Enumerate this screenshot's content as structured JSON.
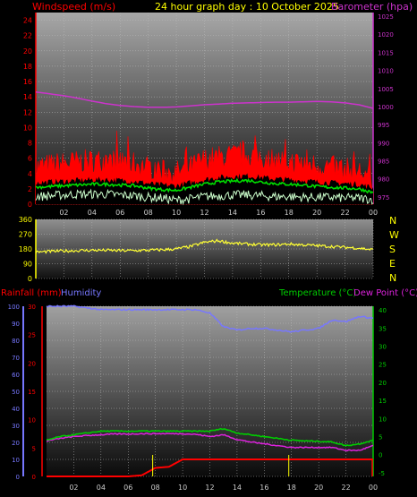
{
  "header": {
    "left_title": "Windspeed (m/s)",
    "center_title": "24 hour graph day : 10 October 2025",
    "right_title": "Barometer (hpa)"
  },
  "colors": {
    "wind": "#ff0000",
    "gust_fill": "#ff0000",
    "barometer": "#cc33cc",
    "wind_avg": "#00dd00",
    "wind_low": "#ccffcc",
    "direction": "#ffff33",
    "humidity": "#7777ff",
    "temperature": "#00cc00",
    "dewpoint": "#dd22dd",
    "rain": "#ff0000",
    "rain_marker": "#ffff00"
  },
  "x_ticks": [
    "02",
    "04",
    "06",
    "08",
    "10",
    "12",
    "14",
    "16",
    "18",
    "20",
    "22",
    "00"
  ],
  "compass": [
    "N",
    "W",
    "S",
    "E",
    "N"
  ],
  "labels_bottom": {
    "rainfall": "Rainfall (mm)",
    "humidity": "Humidity",
    "temperature": "Temperature (°C)",
    "dewpoint": "Dew Point (°C)"
  },
  "chart_data": [
    {
      "type": "line",
      "title": "24 hour graph day : 10 October 2025",
      "ylabel": "Windspeed (m/s)",
      "y2label": "Barometer (hpa)",
      "ylim": [
        0,
        25
      ],
      "y2lim": [
        973,
        1026
      ],
      "y_ticks": [
        0,
        2,
        4,
        6,
        8,
        10,
        12,
        14,
        16,
        18,
        20,
        22,
        24
      ],
      "y2_ticks": [
        975,
        980,
        985,
        990,
        995,
        1000,
        1005,
        1010,
        1015,
        1020,
        1025
      ],
      "x_hours": [
        0,
        1,
        2,
        3,
        4,
        5,
        6,
        7,
        8,
        9,
        10,
        11,
        12,
        13,
        14,
        15,
        16,
        17,
        18,
        19,
        20,
        21,
        22,
        23,
        24
      ],
      "series": [
        {
          "name": "Barometer (hpa)",
          "axis": "y2",
          "values": [
            1004,
            1003.5,
            1003,
            1002.3,
            1001.5,
            1000.8,
            1000.3,
            1000,
            999.8,
            999.8,
            999.9,
            1000.2,
            1000.5,
            1000.7,
            1000.9,
            1001,
            1001.1,
            1001.2,
            1001.2,
            1001.3,
            1001.4,
            1001.3,
            1001,
            1000.5,
            999.5
          ]
        },
        {
          "axis": "y",
          "values": [
            4.5,
            4.8,
            5,
            5.2,
            5.3,
            5.4,
            5.2,
            5,
            4.5,
            4,
            3.8,
            4.5,
            5.5,
            5.8,
            6,
            6.2,
            5.8,
            5.5,
            5.2,
            5,
            4.8,
            4.5,
            4.2,
            4,
            3
          ]
        },
        {
          "axis": "y",
          "values": [
            2.2,
            2.3,
            2.4,
            2.5,
            2.6,
            2.6,
            2.5,
            2.4,
            2.1,
            1.9,
            1.8,
            2.2,
            2.6,
            2.9,
            3,
            3.1,
            2.9,
            2.7,
            2.6,
            2.5,
            2.3,
            2.2,
            2.1,
            2,
            1.5
          ]
        },
        {
          "axis": "y",
          "values": [
            1,
            1.1,
            1.2,
            1.3,
            1.3,
            1.3,
            1.2,
            1.1,
            0.9,
            0.8,
            0.5,
            0.7,
            1,
            1.1,
            1.2,
            1.2,
            1.1,
            1,
            1,
            0.9,
            0.9,
            0.9,
            0.8,
            0.8,
            0.6
          ]
        }
      ]
    },
    {
      "type": "line",
      "ylim": [
        0,
        360
      ],
      "y_ticks": [
        0,
        90,
        180,
        270,
        360
      ],
      "x_hours": [
        0,
        1,
        2,
        3,
        4,
        5,
        6,
        7,
        8,
        9,
        10,
        11,
        12,
        13,
        14,
        15,
        16,
        17,
        18,
        19,
        20,
        21,
        22,
        23,
        24
      ],
      "series": [
        {
          "values": [
            160,
            165,
            168,
            170,
            172,
            172,
            170,
            170,
            172,
            175,
            180,
            195,
            220,
            230,
            215,
            210,
            205,
            205,
            210,
            205,
            200,
            195,
            190,
            185,
            175
          ]
        }
      ]
    },
    {
      "type": "line",
      "y1label": "Rainfall (mm)",
      "y1lim": [
        0,
        30
      ],
      "y1_ticks": [
        0,
        5,
        10,
        15,
        20,
        25,
        30
      ],
      "y2label": "Humidity",
      "y2lim": [
        0,
        100
      ],
      "y2_ticks": [
        0,
        10,
        20,
        30,
        40,
        50,
        60,
        70,
        80,
        90,
        100
      ],
      "y3label": "Temperature (°C)",
      "y3lim": [
        -6,
        41
      ],
      "y3_ticks": [
        -5,
        0,
        5,
        10,
        15,
        20,
        25,
        30,
        35,
        40
      ],
      "x_hours": [
        0,
        1,
        2,
        3,
        4,
        5,
        6,
        7,
        8,
        9,
        10,
        11,
        12,
        13,
        14,
        15,
        16,
        17,
        18,
        19,
        20,
        21,
        22,
        23,
        24
      ],
      "series": [
        {
          "name": "Humidity",
          "axis": "y2",
          "values": [
            100,
            100,
            100,
            99,
            98,
            98,
            98,
            98,
            98,
            98,
            98,
            98,
            96,
            88,
            86,
            87,
            87,
            86,
            85,
            86,
            87,
            92,
            91,
            94,
            93
          ]
        },
        {
          "name": "Temperature (°C)",
          "axis": "y3",
          "values": [
            4,
            5,
            5.5,
            6,
            6.5,
            6.5,
            6.5,
            6.5,
            6.5,
            6.5,
            6.5,
            6.5,
            6.5,
            7.2,
            6,
            5.5,
            5,
            4.5,
            4,
            3.8,
            3.7,
            3.5,
            2.5,
            3,
            4
          ]
        },
        {
          "name": "Dew Point (°C)",
          "axis": "y3",
          "values": [
            3.8,
            4.5,
            5,
            5.3,
            5.5,
            5.7,
            5.7,
            5.8,
            5.8,
            5.8,
            5.8,
            5.6,
            5,
            5.5,
            4.2,
            3.5,
            3,
            2.5,
            2,
            2,
            2,
            2,
            1.2,
            1.2,
            2.5
          ]
        },
        {
          "name": "Rainfall (mm)",
          "axis": "y1",
          "values": [
            0,
            0,
            0,
            0,
            0,
            0,
            0,
            0.2,
            1.5,
            1.7,
            3,
            3,
            3,
            3,
            3,
            3,
            3,
            3,
            3,
            3,
            3,
            3,
            3,
            3,
            3
          ]
        }
      ],
      "markers_hours": [
        7.8,
        17.8
      ]
    }
  ]
}
